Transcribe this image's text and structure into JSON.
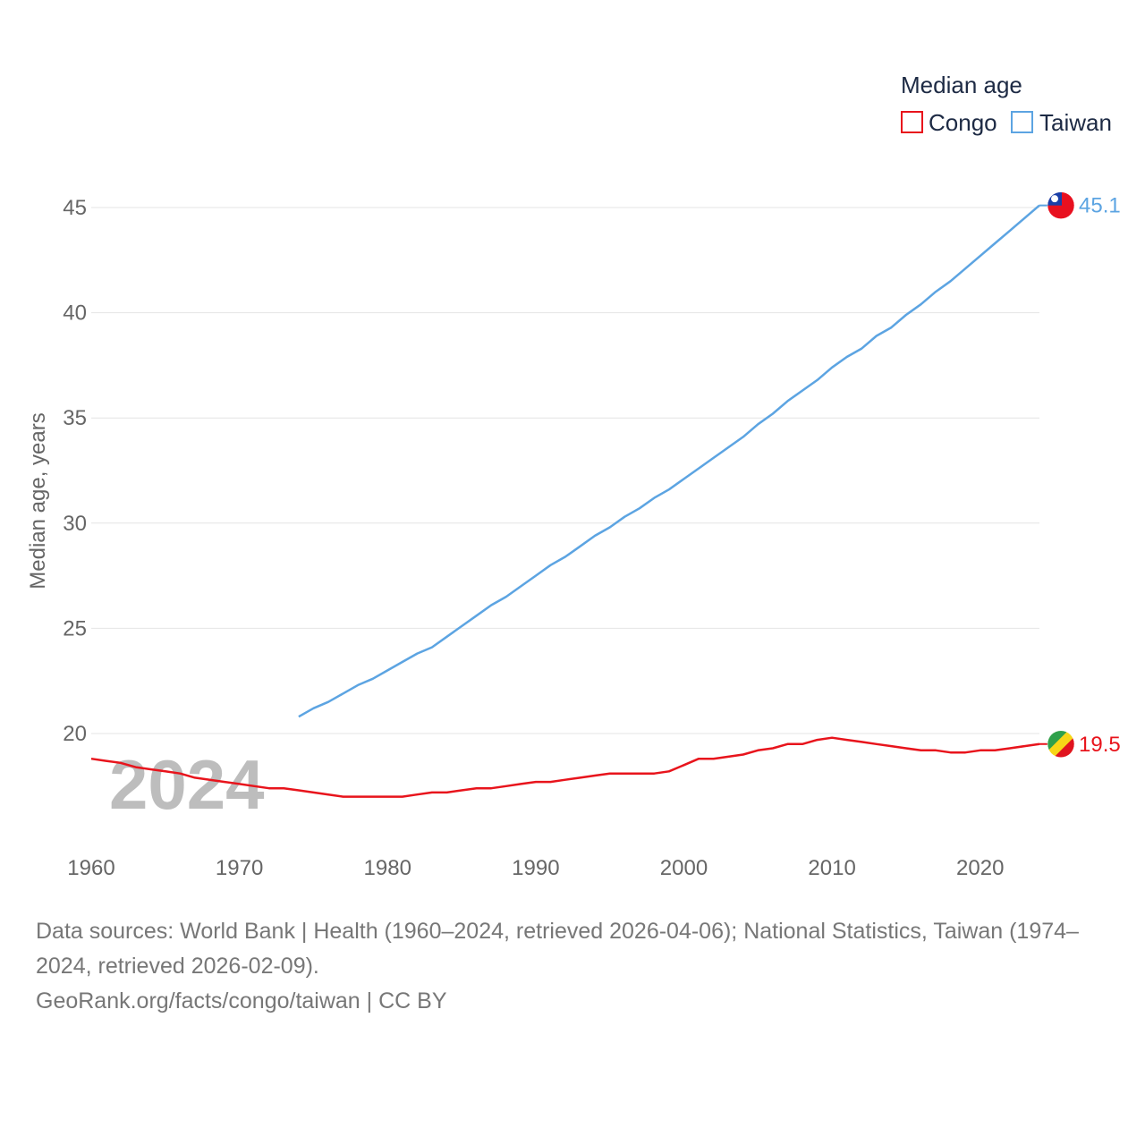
{
  "chart_data": {
    "type": "line",
    "title": "",
    "xlabel": "",
    "ylabel": "Median age, years",
    "xlim": [
      1960,
      2024
    ],
    "ylim": [
      17,
      45
    ],
    "yticks": [
      20,
      25,
      30,
      35,
      40,
      45
    ],
    "xticks": [
      1960,
      1970,
      1980,
      1990,
      2000,
      2010,
      2020
    ],
    "legend_title": "Median age",
    "legend_position": "top-right",
    "year_overlay": "2024",
    "series": [
      {
        "name": "Congo",
        "color": "#e8141c",
        "flag": "congo-flag",
        "end_label": "19.5",
        "x": [
          1960,
          1961,
          1962,
          1963,
          1964,
          1965,
          1966,
          1967,
          1968,
          1969,
          1970,
          1971,
          1972,
          1973,
          1974,
          1975,
          1976,
          1977,
          1978,
          1979,
          1980,
          1981,
          1982,
          1983,
          1984,
          1985,
          1986,
          1987,
          1988,
          1989,
          1990,
          1991,
          1992,
          1993,
          1994,
          1995,
          1996,
          1997,
          1998,
          1999,
          2000,
          2001,
          2002,
          2003,
          2004,
          2005,
          2006,
          2007,
          2008,
          2009,
          2010,
          2011,
          2012,
          2013,
          2014,
          2015,
          2016,
          2017,
          2018,
          2019,
          2020,
          2021,
          2022,
          2023,
          2024
        ],
        "values": [
          18.8,
          18.7,
          18.6,
          18.4,
          18.3,
          18.2,
          18.1,
          17.9,
          17.8,
          17.7,
          17.6,
          17.5,
          17.4,
          17.4,
          17.3,
          17.2,
          17.1,
          17.0,
          17.0,
          17.0,
          17.0,
          17.0,
          17.1,
          17.2,
          17.2,
          17.3,
          17.4,
          17.4,
          17.5,
          17.6,
          17.7,
          17.7,
          17.8,
          17.9,
          18.0,
          18.1,
          18.1,
          18.1,
          18.1,
          18.2,
          18.5,
          18.8,
          18.8,
          18.9,
          19.0,
          19.2,
          19.3,
          19.5,
          19.5,
          19.7,
          19.8,
          19.7,
          19.6,
          19.5,
          19.4,
          19.3,
          19.2,
          19.2,
          19.1,
          19.1,
          19.2,
          19.2,
          19.3,
          19.4,
          19.5
        ]
      },
      {
        "name": "Taiwan",
        "color": "#5ca4e2",
        "flag": "taiwan-flag",
        "end_label": "45.1",
        "x": [
          1974,
          1975,
          1976,
          1977,
          1978,
          1979,
          1980,
          1981,
          1982,
          1983,
          1984,
          1985,
          1986,
          1987,
          1988,
          1989,
          1990,
          1991,
          1992,
          1993,
          1994,
          1995,
          1996,
          1997,
          1998,
          1999,
          2000,
          2001,
          2002,
          2003,
          2004,
          2005,
          2006,
          2007,
          2008,
          2009,
          2010,
          2011,
          2012,
          2013,
          2014,
          2015,
          2016,
          2017,
          2018,
          2019,
          2020,
          2021,
          2022,
          2023,
          2024
        ],
        "values": [
          20.8,
          21.2,
          21.5,
          21.9,
          22.3,
          22.6,
          23.0,
          23.4,
          23.8,
          24.1,
          24.6,
          25.1,
          25.6,
          26.1,
          26.5,
          27.0,
          27.5,
          28.0,
          28.4,
          28.9,
          29.4,
          29.8,
          30.3,
          30.7,
          31.2,
          31.6,
          32.1,
          32.6,
          33.1,
          33.6,
          34.1,
          34.7,
          35.2,
          35.8,
          36.3,
          36.8,
          37.4,
          37.9,
          38.3,
          38.9,
          39.3,
          39.9,
          40.4,
          41.0,
          41.5,
          42.1,
          42.7,
          43.3,
          43.9,
          44.5,
          45.1
        ]
      }
    ]
  },
  "footer": {
    "sources": "Data sources: World Bank | Health (1960–2024, retrieved 2026-04-06); National Statistics, Taiwan (1974–2024, retrieved 2026-02-09).",
    "credit": "GeoRank.org/facts/congo/taiwan | CC BY"
  }
}
